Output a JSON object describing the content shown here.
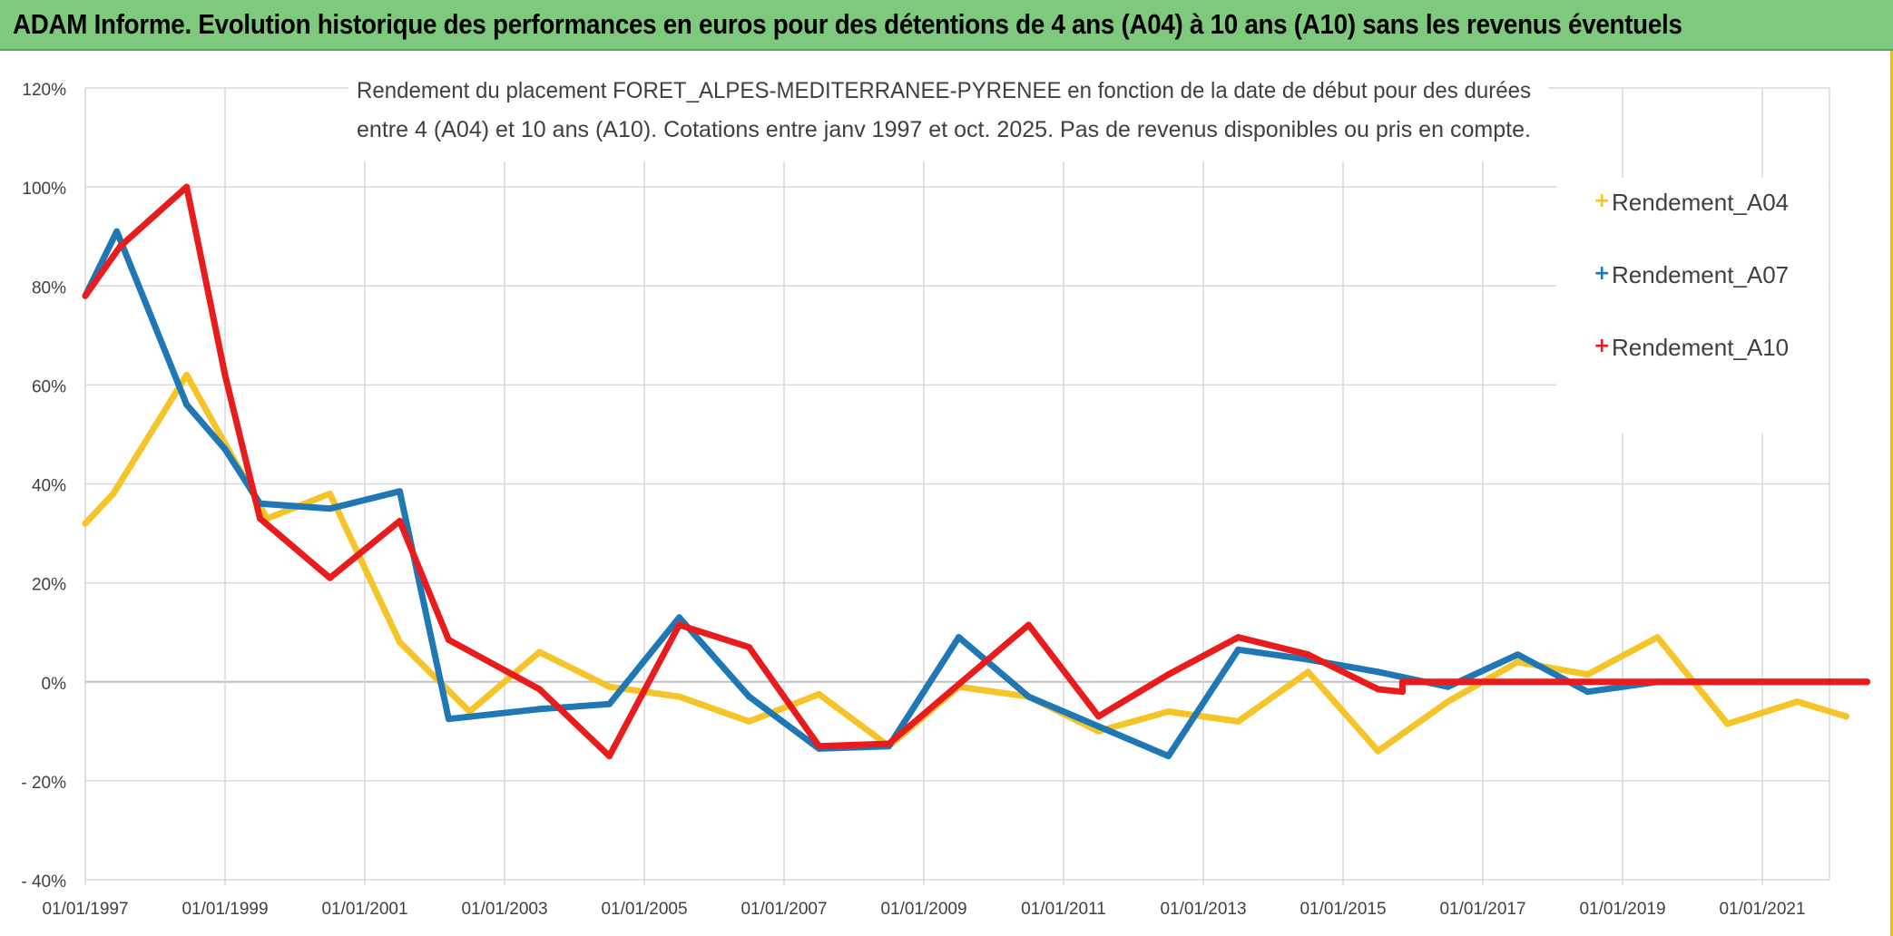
{
  "banner": {
    "title": "ADAM Informe. Evolution historique des performances en euros pour des détentions de 4 ans (A04) à 10 ans (A10) sans les revenus éventuels"
  },
  "colors": {
    "banner_bg": "#7ec97e",
    "A04": "#f5c428",
    "A07": "#1f77b4",
    "A10": "#e81c1c",
    "grid": "#d9d9d9",
    "zero_line": "#bfbfbf"
  },
  "chart_data": {
    "type": "line",
    "title_lines": [
      "Rendement du placement FORET_ALPES-MEDITERRANEE-PYRENEE en fonction de la date de début pour des durées",
      "entre 4 (A04) et 10 ans (A10). Cotations entre janv 1997 et oct. 2025. Pas de revenus disponibles ou pris en compte."
    ],
    "xlabel": "",
    "ylabel": "",
    "x_range": [
      1997.0,
      2022.5
    ],
    "ylim": [
      -40,
      120
    ],
    "y_ticks": [
      {
        "value": 120,
        "label": "120%"
      },
      {
        "value": 100,
        "label": "100%"
      },
      {
        "value": 80,
        "label": "80%"
      },
      {
        "value": 60,
        "label": "60%"
      },
      {
        "value": 40,
        "label": "40%"
      },
      {
        "value": 20,
        "label": "20%"
      },
      {
        "value": 0,
        "label": "0%"
      },
      {
        "value": -20,
        "label": "- 20%"
      },
      {
        "value": -40,
        "label": "- 40%"
      }
    ],
    "x_ticks": [
      {
        "value": 1997,
        "label": "01/01/1997"
      },
      {
        "value": 1999,
        "label": "01/01/1999"
      },
      {
        "value": 2001,
        "label": "01/01/2001"
      },
      {
        "value": 2003,
        "label": "01/01/2003"
      },
      {
        "value": 2005,
        "label": "01/01/2005"
      },
      {
        "value": 2007,
        "label": "01/01/2007"
      },
      {
        "value": 2009,
        "label": "01/01/2009"
      },
      {
        "value": 2011,
        "label": "01/01/2011"
      },
      {
        "value": 2013,
        "label": "01/01/2013"
      },
      {
        "value": 2015,
        "label": "01/01/2015"
      },
      {
        "value": 2017,
        "label": "01/01/2017"
      },
      {
        "value": 2019,
        "label": "01/01/2019"
      },
      {
        "value": 2021,
        "label": "01/01/2021"
      }
    ],
    "legend_position": "top-right",
    "series": [
      {
        "name": "Rendement_A04",
        "key": "A04",
        "points": [
          [
            1997.0,
            32
          ],
          [
            1997.4,
            38
          ],
          [
            1998.45,
            62
          ],
          [
            1999.6,
            33
          ],
          [
            2000.5,
            38
          ],
          [
            2001.5,
            8
          ],
          [
            2002.5,
            -6
          ],
          [
            2003.5,
            6
          ],
          [
            2004.5,
            -1
          ],
          [
            2005.5,
            -3
          ],
          [
            2006.5,
            -8
          ],
          [
            2007.5,
            -2.5
          ],
          [
            2008.5,
            -13
          ],
          [
            2009.5,
            -1
          ],
          [
            2010.5,
            -3
          ],
          [
            2011.5,
            -10
          ],
          [
            2012.5,
            -6
          ],
          [
            2013.5,
            -8
          ],
          [
            2014.5,
            2
          ],
          [
            2015.5,
            -14
          ],
          [
            2016.5,
            -4
          ],
          [
            2017.5,
            4
          ],
          [
            2018.5,
            1.5
          ],
          [
            2019.5,
            9
          ],
          [
            2020.5,
            -8.5
          ],
          [
            2021.5,
            -4
          ],
          [
            2022.2,
            -7
          ]
        ]
      },
      {
        "name": "Rendement_A07",
        "key": "A07",
        "points": [
          [
            1997.0,
            78
          ],
          [
            1997.45,
            91
          ],
          [
            1998.45,
            56
          ],
          [
            1999.0,
            47
          ],
          [
            1999.5,
            36
          ],
          [
            2000.5,
            35
          ],
          [
            2001.5,
            38.5
          ],
          [
            2002.2,
            -7.5
          ],
          [
            2003.5,
            -5.5
          ],
          [
            2004.5,
            -4.5
          ],
          [
            2005.5,
            13
          ],
          [
            2006.5,
            -3
          ],
          [
            2007.5,
            -13.5
          ],
          [
            2008.5,
            -13
          ],
          [
            2009.5,
            9
          ],
          [
            2010.5,
            -3
          ],
          [
            2011.5,
            -9
          ],
          [
            2012.5,
            -15
          ],
          [
            2013.5,
            6.5
          ],
          [
            2014.5,
            4.5
          ],
          [
            2015.5,
            2
          ],
          [
            2016.5,
            -1
          ],
          [
            2017.5,
            5.5
          ],
          [
            2018.5,
            -2
          ],
          [
            2019.5,
            0
          ],
          [
            2022.5,
            0
          ]
        ]
      },
      {
        "name": "Rendement_A10",
        "key": "A10",
        "points": [
          [
            1997.0,
            78
          ],
          [
            1997.5,
            88
          ],
          [
            1998.45,
            100
          ],
          [
            1999.0,
            62
          ],
          [
            1999.5,
            33
          ],
          [
            2000.5,
            21
          ],
          [
            2001.5,
            32.5
          ],
          [
            2002.2,
            8.5
          ],
          [
            2003.5,
            -1.5
          ],
          [
            2004.5,
            -15
          ],
          [
            2005.5,
            11.5
          ],
          [
            2006.5,
            7
          ],
          [
            2007.5,
            -13
          ],
          [
            2008.5,
            -12.5
          ],
          [
            2009.5,
            -0.5
          ],
          [
            2010.5,
            11.5
          ],
          [
            2011.5,
            -7
          ],
          [
            2012.5,
            1.5
          ],
          [
            2013.5,
            9
          ],
          [
            2014.5,
            5.5
          ],
          [
            2015.5,
            -1.5
          ],
          [
            2015.85,
            -2
          ],
          [
            2015.85,
            0
          ],
          [
            2022.5,
            0
          ]
        ]
      }
    ]
  }
}
